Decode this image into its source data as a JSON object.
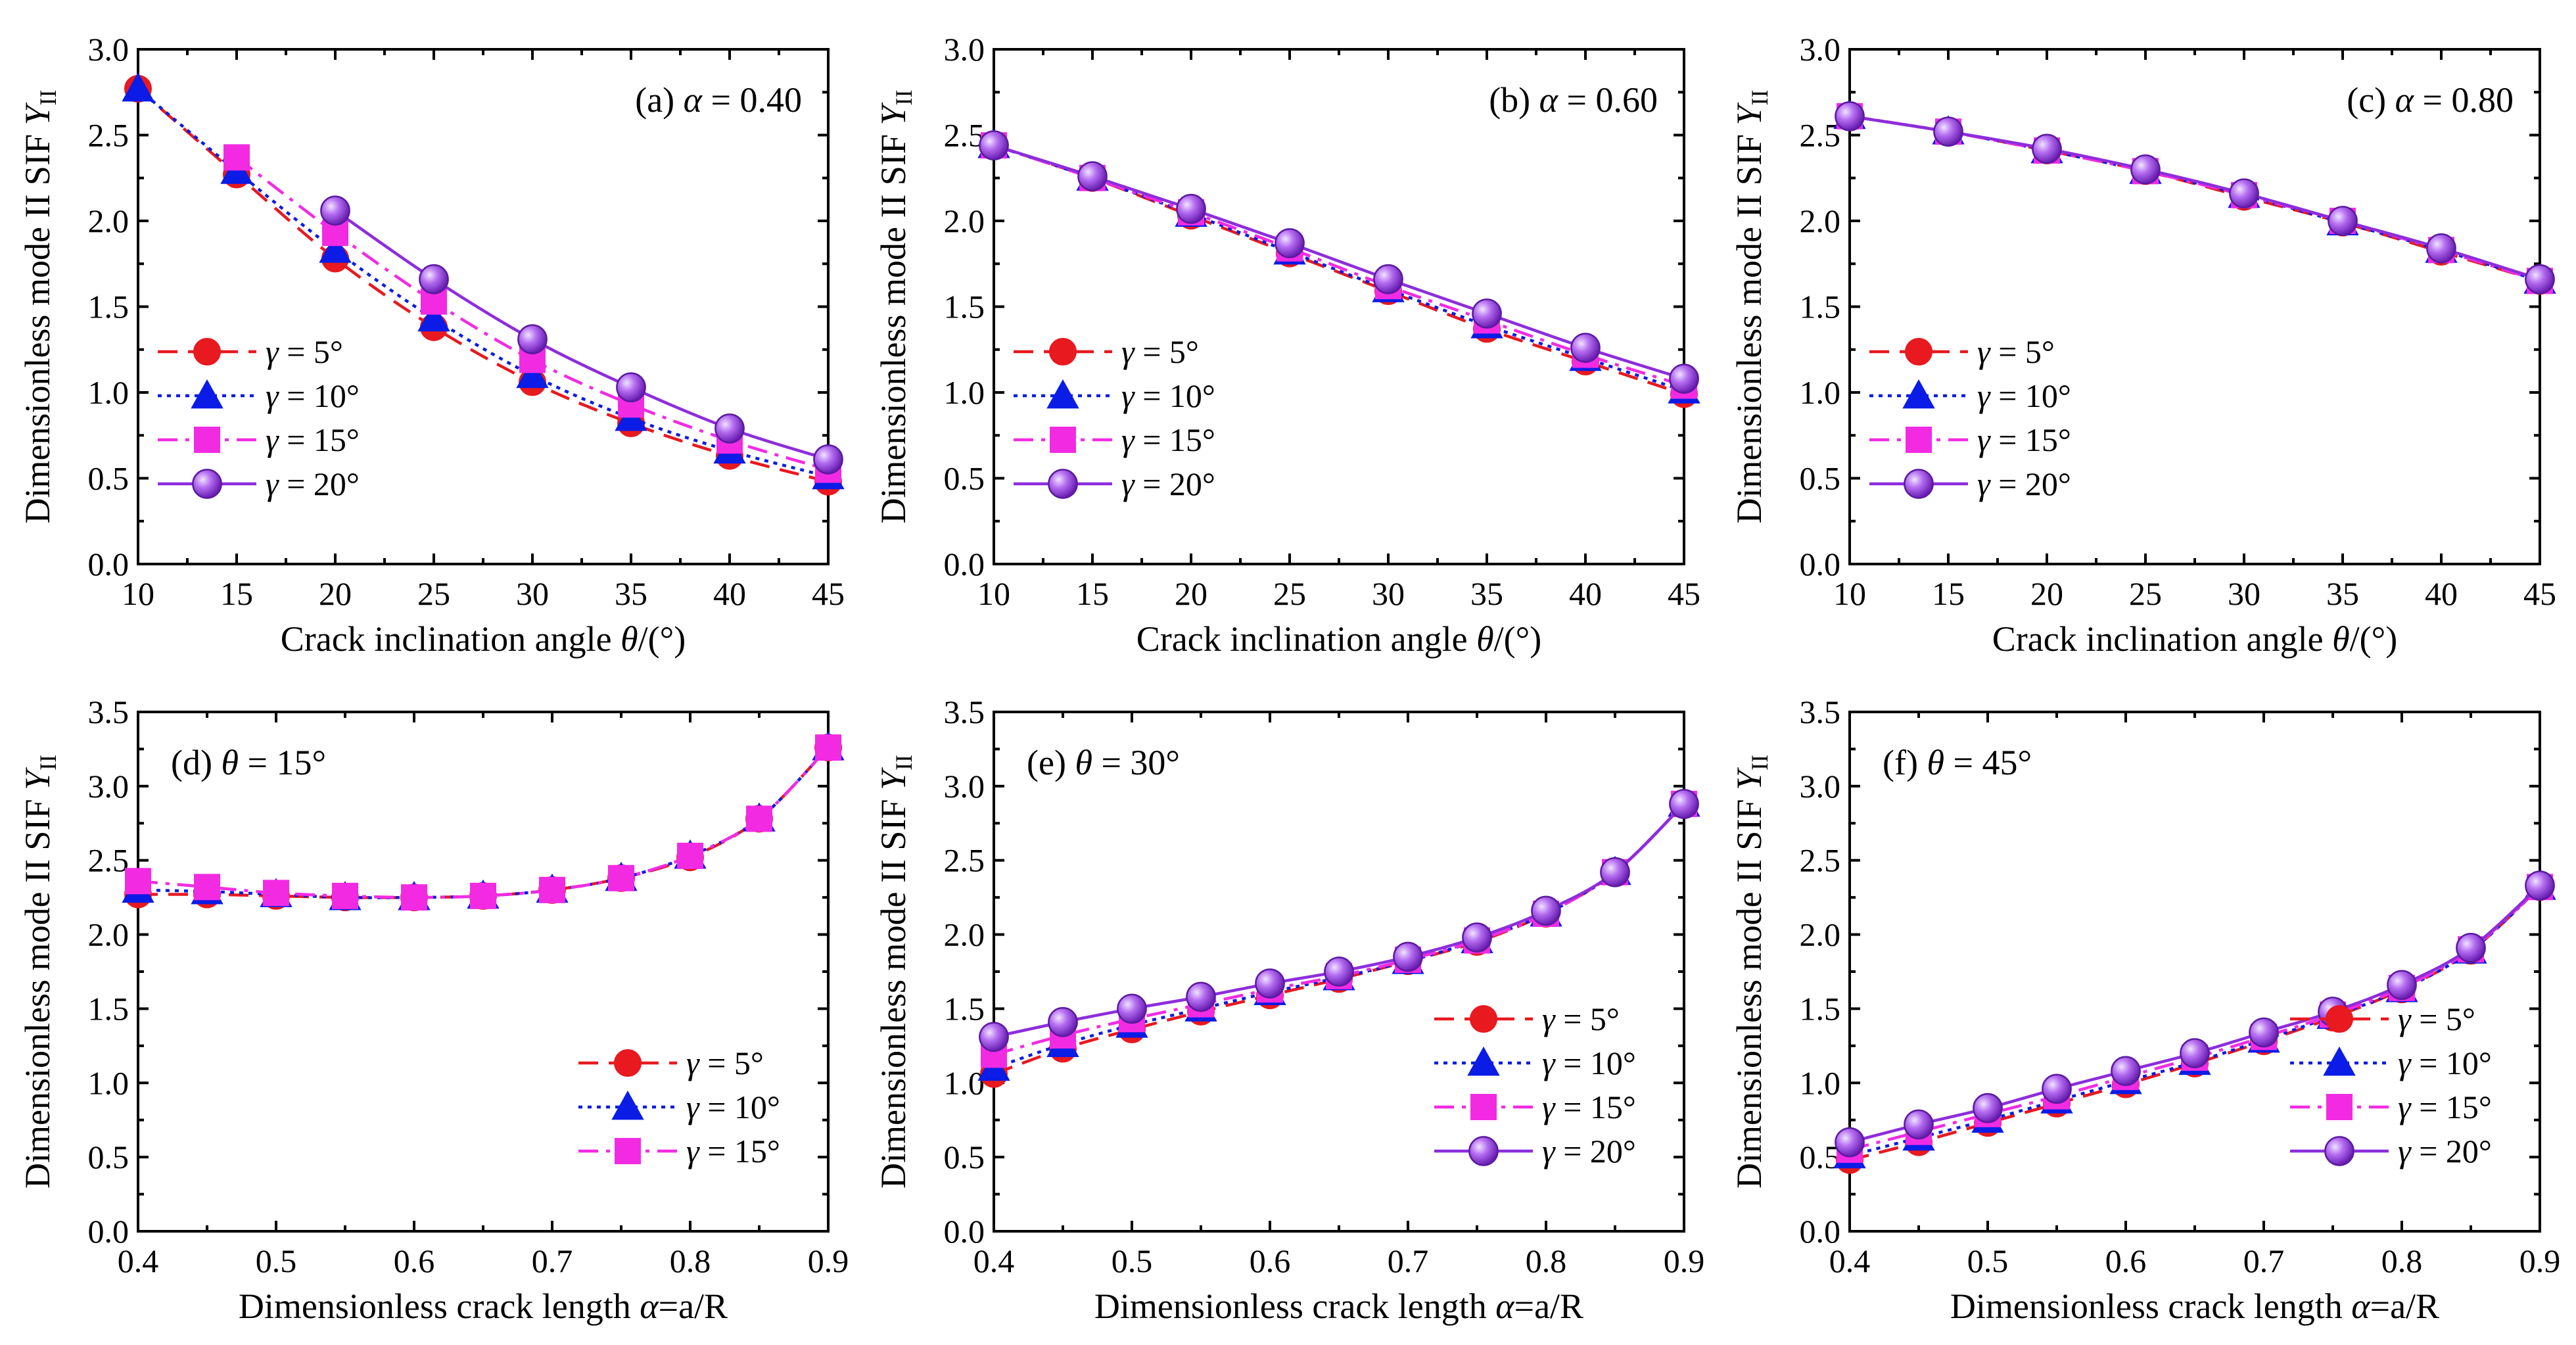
{
  "chart_data": [
    {
      "type": "line",
      "title": "(a)  α = 0.40",
      "title_prefix": "(a)",
      "title_var": "α",
      "title_value": "= 0.40",
      "xlabel": "Crack inclination angle θ/(°)",
      "xlabel_text": "Crack inclination angle ",
      "xlabel_var": "θ",
      "xlabel_unit": "/(°)",
      "ylabel": "Dimensionless mode II SIF YII",
      "ylabel_text": "Dimensionless mode II SIF ",
      "ylabel_var": "Y",
      "ylabel_sub": "II",
      "xlim": [
        10,
        45
      ],
      "ylim": [
        0.0,
        3.0
      ],
      "xticks": [
        "10",
        "15",
        "20",
        "25",
        "30",
        "35",
        "40",
        "45"
      ],
      "yticks": [
        "0.0",
        "0.5",
        "1.0",
        "1.5",
        "2.0",
        "2.5",
        "3.0"
      ],
      "legend_loc": "lower-left",
      "x": [
        10,
        15,
        20,
        25,
        30,
        35,
        40,
        45
      ],
      "series": [
        {
          "name": "γ = 5°",
          "values": [
            2.77,
            2.27,
            1.78,
            1.38,
            1.06,
            0.82,
            0.63,
            0.48
          ]
        },
        {
          "name": "γ = 10°",
          "values": [
            2.77,
            2.29,
            1.83,
            1.43,
            1.1,
            0.85,
            0.66,
            0.51
          ]
        },
        {
          "name": "γ = 15°",
          "values": [
            null,
            2.37,
            1.93,
            1.53,
            1.19,
            0.93,
            0.72,
            0.55
          ]
        },
        {
          "name": "γ = 20°",
          "values": [
            null,
            null,
            2.06,
            1.66,
            1.31,
            1.03,
            0.79,
            0.61
          ]
        }
      ]
    },
    {
      "type": "line",
      "title": "(b)  α = 0.60",
      "title_prefix": "(b)",
      "title_var": "α",
      "title_value": "= 0.60",
      "xlabel": "Crack inclination angle θ/(°)",
      "xlabel_text": "Crack inclination angle ",
      "xlabel_var": "θ",
      "xlabel_unit": "/(°)",
      "ylabel": "Dimensionless mode II SIF YII",
      "ylabel_text": "Dimensionless mode II SIF ",
      "ylabel_var": "Y",
      "ylabel_sub": "II",
      "xlim": [
        10,
        45
      ],
      "ylim": [
        0.0,
        3.0
      ],
      "xticks": [
        "10",
        "15",
        "20",
        "25",
        "30",
        "35",
        "40",
        "45"
      ],
      "yticks": [
        "0.0",
        "0.5",
        "1.0",
        "1.5",
        "2.0",
        "2.5",
        "3.0"
      ],
      "legend_loc": "lower-left",
      "x": [
        10,
        15,
        20,
        25,
        30,
        35,
        40,
        45
      ],
      "series": [
        {
          "name": "γ = 5°",
          "values": [
            2.44,
            2.25,
            2.03,
            1.81,
            1.59,
            1.37,
            1.18,
            0.99
          ]
        },
        {
          "name": "γ = 10°",
          "values": [
            2.44,
            2.25,
            2.04,
            1.82,
            1.6,
            1.39,
            1.2,
            1.01
          ]
        },
        {
          "name": "γ = 15°",
          "values": [
            2.44,
            2.25,
            2.05,
            1.84,
            1.62,
            1.42,
            1.22,
            1.04
          ]
        },
        {
          "name": "γ = 20°",
          "values": [
            2.44,
            2.26,
            2.07,
            1.87,
            1.66,
            1.46,
            1.26,
            1.08
          ]
        }
      ]
    },
    {
      "type": "line",
      "title": "(c)  α = 0.80",
      "title_prefix": "(c)",
      "title_var": "α",
      "title_value": "= 0.80",
      "xlabel": "Crack inclination angle θ/(°)",
      "xlabel_text": "Crack inclination angle ",
      "xlabel_var": "θ",
      "xlabel_unit": "/(°)",
      "ylabel": "Dimensionless mode II SIF YII",
      "ylabel_text": "Dimensionless mode II SIF ",
      "ylabel_var": "Y",
      "ylabel_sub": "II",
      "xlim": [
        10,
        45
      ],
      "ylim": [
        0.0,
        3.0
      ],
      "xticks": [
        "10",
        "15",
        "20",
        "25",
        "30",
        "35",
        "40",
        "45"
      ],
      "yticks": [
        "0.0",
        "0.5",
        "1.0",
        "1.5",
        "2.0",
        "2.5",
        "3.0"
      ],
      "legend_loc": "lower-left",
      "x": [
        10,
        15,
        20,
        25,
        30,
        35,
        40,
        45
      ],
      "series": [
        {
          "name": "γ = 5°",
          "values": [
            2.61,
            2.52,
            2.41,
            2.29,
            2.14,
            1.99,
            1.82,
            1.65
          ]
        },
        {
          "name": "γ = 10°",
          "values": [
            2.61,
            2.52,
            2.41,
            2.29,
            2.15,
            1.99,
            1.83,
            1.65
          ]
        },
        {
          "name": "γ = 15°",
          "values": [
            2.61,
            2.52,
            2.41,
            2.29,
            2.15,
            2.0,
            1.83,
            1.65
          ]
        },
        {
          "name": "γ = 20°",
          "values": [
            2.61,
            2.52,
            2.42,
            2.3,
            2.16,
            2.0,
            1.84,
            1.66
          ]
        }
      ]
    },
    {
      "type": "line",
      "title": "(d)  θ = 15°",
      "title_prefix": "(d)",
      "title_var": "θ",
      "title_value": "= 15°",
      "xlabel": "Dimensionless crack length α=a/R",
      "xlabel_text": "Dimensionless crack length ",
      "xlabel_var": "α",
      "xlabel_unit": "=a/R",
      "ylabel": "Dimensionless mode II SIF YII",
      "ylabel_text": "Dimensionless mode II SIF ",
      "ylabel_var": "Y",
      "ylabel_sub": "II",
      "xlim": [
        0.4,
        0.9
      ],
      "ylim": [
        0.0,
        3.5
      ],
      "xticks": [
        "0.4",
        "0.5",
        "0.6",
        "0.7",
        "0.8",
        "0.9"
      ],
      "yticks": [
        "0.0",
        "0.5",
        "1.0",
        "1.5",
        "2.0",
        "2.5",
        "3.0",
        "3.5"
      ],
      "legend_loc": "lower-right",
      "x": [
        0.4,
        0.45,
        0.5,
        0.55,
        0.6,
        0.65,
        0.7,
        0.75,
        0.8,
        0.85,
        0.9
      ],
      "series": [
        {
          "name": "γ = 5°",
          "values": [
            2.27,
            2.27,
            2.26,
            2.25,
            2.25,
            2.26,
            2.3,
            2.38,
            2.52,
            2.78,
            3.26
          ]
        },
        {
          "name": "γ = 10°",
          "values": [
            2.3,
            2.29,
            2.27,
            2.25,
            2.25,
            2.26,
            2.3,
            2.38,
            2.53,
            2.78,
            3.26
          ]
        },
        {
          "name": "γ = 15°",
          "values": [
            2.36,
            2.32,
            2.28,
            2.26,
            2.25,
            2.26,
            2.3,
            2.38,
            2.53,
            2.78,
            3.26
          ]
        }
      ]
    },
    {
      "type": "line",
      "title": "(e)  θ = 30°",
      "title_prefix": "(e)",
      "title_var": "θ",
      "title_value": "= 30°",
      "xlabel": "Dimensionless crack length α=a/R",
      "xlabel_text": "Dimensionless crack length ",
      "xlabel_var": "α",
      "xlabel_unit": "=a/R",
      "ylabel": "Dimensionless mode II SIF YII",
      "ylabel_text": "Dimensionless mode II SIF ",
      "ylabel_var": "Y",
      "ylabel_sub": "II",
      "xlim": [
        0.4,
        0.9
      ],
      "ylim": [
        0.0,
        3.5
      ],
      "xticks": [
        "0.4",
        "0.5",
        "0.6",
        "0.7",
        "0.8",
        "0.9"
      ],
      "yticks": [
        "0.0",
        "0.5",
        "1.0",
        "1.5",
        "2.0",
        "2.5",
        "3.0",
        "3.5"
      ],
      "legend_loc": "lower-right",
      "x": [
        0.4,
        0.45,
        0.5,
        0.55,
        0.6,
        0.65,
        0.7,
        0.75,
        0.8,
        0.85,
        0.9
      ],
      "series": [
        {
          "name": "γ = 5°",
          "values": [
            1.06,
            1.23,
            1.36,
            1.48,
            1.59,
            1.7,
            1.82,
            1.95,
            2.14,
            2.42,
            2.88
          ]
        },
        {
          "name": "γ = 10°",
          "values": [
            1.1,
            1.26,
            1.39,
            1.5,
            1.61,
            1.71,
            1.82,
            1.96,
            2.14,
            2.42,
            2.88
          ]
        },
        {
          "name": "γ = 15°",
          "values": [
            1.19,
            1.32,
            1.43,
            1.53,
            1.63,
            1.72,
            1.83,
            1.96,
            2.14,
            2.42,
            2.88
          ]
        },
        {
          "name": "γ = 20°",
          "values": [
            1.31,
            1.41,
            1.5,
            1.58,
            1.67,
            1.75,
            1.85,
            1.98,
            2.16,
            2.42,
            2.88
          ]
        }
      ]
    },
    {
      "type": "line",
      "title": "(f)  θ = 45°",
      "title_prefix": "(f)",
      "title_var": "θ",
      "title_value": "= 45°",
      "xlabel": "Dimensionless crack length α=a/R",
      "xlabel_text": "Dimensionless crack length ",
      "xlabel_var": "α",
      "xlabel_unit": "=a/R",
      "ylabel": "Dimensionless mode II SIF YII",
      "ylabel_text": "Dimensionless mode II SIF ",
      "ylabel_var": "Y",
      "ylabel_sub": "II",
      "xlim": [
        0.4,
        0.9
      ],
      "ylim": [
        0.0,
        3.5
      ],
      "xticks": [
        "0.4",
        "0.5",
        "0.6",
        "0.7",
        "0.8",
        "0.9"
      ],
      "yticks": [
        "0.0",
        "0.5",
        "1.0",
        "1.5",
        "2.0",
        "2.5",
        "3.0",
        "3.5"
      ],
      "legend_loc": "lower-right",
      "x": [
        0.4,
        0.45,
        0.5,
        0.55,
        0.6,
        0.65,
        0.7,
        0.75,
        0.8,
        0.85,
        0.9
      ],
      "series": [
        {
          "name": "γ = 5°",
          "values": [
            0.48,
            0.6,
            0.73,
            0.86,
            0.99,
            1.13,
            1.28,
            1.44,
            1.63,
            1.89,
            2.32
          ]
        },
        {
          "name": "γ = 10°",
          "values": [
            0.51,
            0.63,
            0.75,
            0.88,
            1.01,
            1.14,
            1.29,
            1.45,
            1.63,
            1.89,
            2.32
          ]
        },
        {
          "name": "γ = 15°",
          "values": [
            0.55,
            0.67,
            0.79,
            0.91,
            1.04,
            1.17,
            1.31,
            1.46,
            1.64,
            1.9,
            2.32
          ]
        },
        {
          "name": "γ = 20°",
          "values": [
            0.6,
            0.72,
            0.83,
            0.96,
            1.08,
            1.2,
            1.34,
            1.48,
            1.66,
            1.91,
            2.33
          ]
        }
      ]
    }
  ],
  "series_styles": [
    {
      "color": "#e8191f",
      "dash": "dash",
      "marker": "circle"
    },
    {
      "color": "#0a1ce6",
      "dash": "dot",
      "marker": "triangle"
    },
    {
      "color": "#f22be3",
      "dash": "dashdot",
      "marker": "square"
    },
    {
      "color": "#8d2ddc",
      "dash": "solid",
      "marker": "sphere"
    }
  ]
}
